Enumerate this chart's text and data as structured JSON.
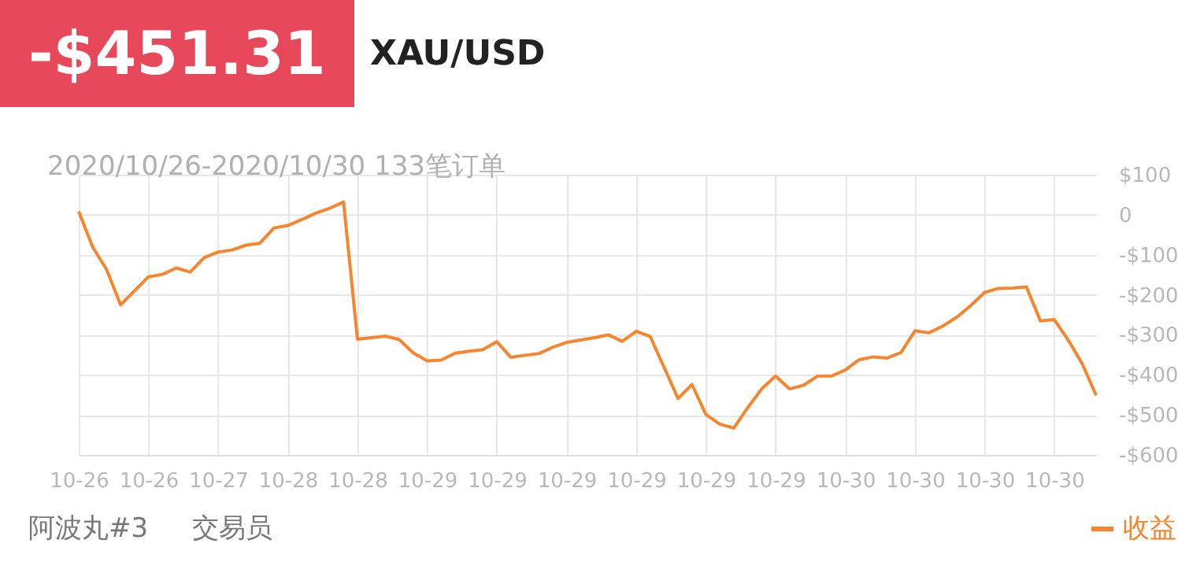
{
  "chart_data": {
    "type": "line",
    "title": "-$451.31",
    "subtitle": "XAU/USD",
    "annotations": [
      "2020/10/26-2020/10/30 133笔订单",
      "阿波丸#3",
      "交易员"
    ],
    "categories": [
      "10-26",
      null,
      null,
      null,
      null,
      "10-26",
      null,
      null,
      null,
      null,
      "10-27",
      null,
      null,
      null,
      null,
      "10-28",
      null,
      null,
      null,
      null,
      "10-28",
      null,
      null,
      null,
      null,
      "10-29",
      null,
      null,
      null,
      null,
      "10-29",
      null,
      null,
      null,
      null,
      "10-29",
      null,
      null,
      null,
      null,
      "10-29",
      null,
      null,
      null,
      null,
      "10-29",
      null,
      null,
      null,
      null,
      "10-29",
      null,
      null,
      null,
      null,
      "10-30",
      null,
      null,
      null,
      null,
      "10-30",
      null,
      null,
      null,
      null,
      "10-30",
      null,
      null,
      null,
      null,
      "10-30",
      null,
      null,
      null
    ],
    "series": [
      {
        "name": "收益",
        "color": "#f5862f",
        "values": [
          8,
          -81,
          -137,
          -225,
          -190,
          -155,
          -149,
          -133,
          -143,
          -107,
          -93,
          -88,
          -76,
          -71,
          -33,
          -27,
          -12,
          4,
          16,
          32,
          -311,
          -307,
          -303,
          -312,
          -345,
          -365,
          -363,
          -346,
          -341,
          -337,
          -317,
          -356,
          -351,
          -347,
          -331,
          -319,
          -313,
          -307,
          -300,
          -316,
          -291,
          -304,
          -381,
          -459,
          -424,
          -499,
          -523,
          -533,
          -482,
          -435,
          -403,
          -435,
          -426,
          -403,
          -403,
          -388,
          -362,
          -355,
          -358,
          -344,
          -290,
          -295,
          -278,
          -256,
          -227,
          -194,
          -184,
          -183,
          -180,
          -265,
          -262,
          -313,
          -372,
          -451
        ]
      }
    ],
    "ylim": [
      -600,
      100
    ],
    "yticks": [
      {
        "value": 100,
        "label": "$100"
      },
      0,
      {
        "value": -100,
        "label": "-$100"
      },
      {
        "value": -200,
        "label": "-$200"
      },
      {
        "value": -300,
        "label": "-$300"
      },
      {
        "value": -400,
        "label": "-$400"
      },
      {
        "value": -500,
        "label": "-$500"
      },
      {
        "value": -600,
        "label": "-$600"
      }
    ],
    "grid": true,
    "legend": "bottom right",
    "marker": "none",
    "line_style": "solid"
  }
}
